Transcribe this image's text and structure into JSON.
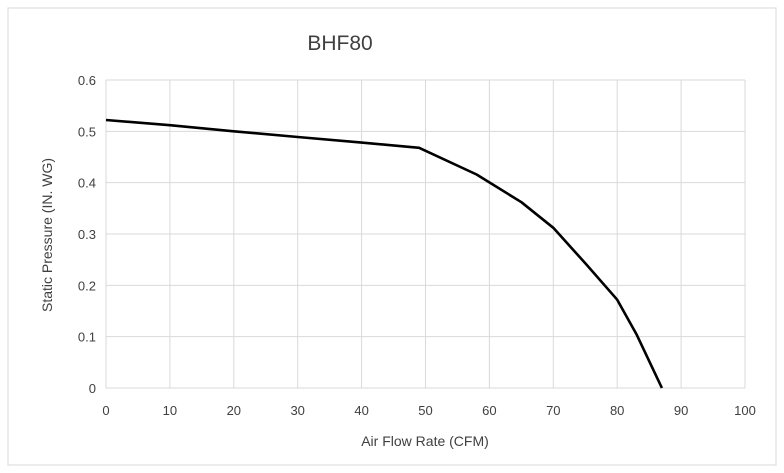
{
  "chart_data": {
    "type": "line",
    "title": "BHF80",
    "xlabel": "Air Flow Rate (CFM)",
    "ylabel": "Static Pressure (IN. WG)",
    "xlim": [
      0,
      100
    ],
    "ylim": [
      0,
      0.6
    ],
    "x_ticks": [
      "0",
      "10",
      "20",
      "30",
      "40",
      "50",
      "60",
      "70",
      "80",
      "90",
      "100"
    ],
    "y_ticks": [
      "0",
      "0.1",
      "0.2",
      "0.3",
      "0.4",
      "0.5",
      "0.6"
    ],
    "grid": true,
    "legend": "none",
    "series": [
      {
        "color": "#000000",
        "x": [
          0,
          10,
          20,
          30,
          40,
          49,
          58,
          65,
          70,
          75,
          80,
          83,
          87
        ],
        "y": [
          0.522,
          0.512,
          0.5,
          0.489,
          0.478,
          0.468,
          0.416,
          0.362,
          0.312,
          0.243,
          0.172,
          0.105,
          0.0
        ]
      }
    ]
  }
}
